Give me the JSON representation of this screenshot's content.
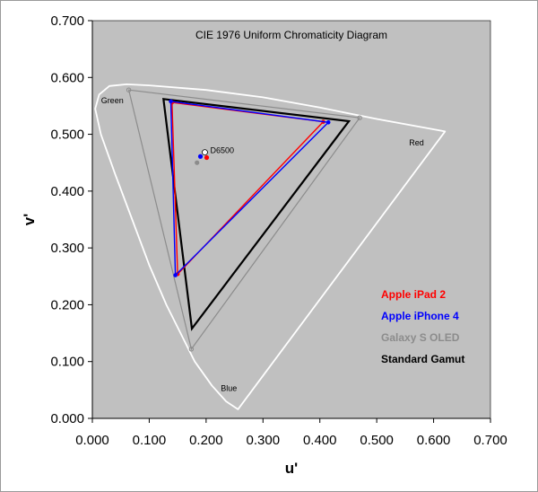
{
  "chart_data": {
    "type": "scatter",
    "title": "CIE 1976 Uniform Chromaticity Diagram",
    "xlabel": "u'",
    "ylabel": "v'",
    "xlim": [
      0,
      0.7
    ],
    "ylim": [
      0,
      0.7
    ],
    "x_ticks": [
      "0.000",
      "0.100",
      "0.200",
      "0.300",
      "0.400",
      "0.500",
      "0.600",
      "0.700"
    ],
    "y_ticks": [
      "0.000",
      "0.100",
      "0.200",
      "0.300",
      "0.400",
      "0.500",
      "0.600",
      "0.700"
    ],
    "plot_background": "#c0c0c0",
    "grid": false,
    "legend_position": "bottom-right",
    "spectral_locus": [
      [
        0.256,
        0.016
      ],
      [
        0.235,
        0.03
      ],
      [
        0.21,
        0.058
      ],
      [
        0.18,
        0.1
      ],
      [
        0.16,
        0.14
      ],
      [
        0.13,
        0.2
      ],
      [
        0.1,
        0.27
      ],
      [
        0.07,
        0.35
      ],
      [
        0.04,
        0.43
      ],
      [
        0.015,
        0.5
      ],
      [
        0.005,
        0.545
      ],
      [
        0.012,
        0.57
      ],
      [
        0.03,
        0.585
      ],
      [
        0.06,
        0.588
      ],
      [
        0.1,
        0.586
      ],
      [
        0.2,
        0.578
      ],
      [
        0.3,
        0.565
      ],
      [
        0.4,
        0.547
      ],
      [
        0.5,
        0.527
      ],
      [
        0.62,
        0.505
      ]
    ],
    "region_labels": [
      {
        "text": "Green",
        "x": 0.035,
        "y": 0.555
      },
      {
        "text": "Red",
        "x": 0.57,
        "y": 0.48
      },
      {
        "text": "Blue",
        "x": 0.24,
        "y": 0.048
      }
    ],
    "white_point": {
      "label": "D6500",
      "x": 0.1978,
      "y": 0.4683
    },
    "series": [
      {
        "name": "Galaxy S OLED",
        "color": "#8c8c8c",
        "vertices": [
          [
            0.064,
            0.578
          ],
          [
            0.47,
            0.529
          ],
          [
            0.174,
            0.122
          ]
        ],
        "white": [
          0.184,
          0.45
        ]
      },
      {
        "name": "Standard Gamut",
        "color": "#000000",
        "vertices": [
          [
            0.125,
            0.562
          ],
          [
            0.451,
            0.523
          ],
          [
            0.175,
            0.158
          ]
        ],
        "white": null
      },
      {
        "name": "Apple iPad 2",
        "color": "#ff0000",
        "vertices": [
          [
            0.14,
            0.556
          ],
          [
            0.406,
            0.522
          ],
          [
            0.15,
            0.254
          ]
        ],
        "white": [
          0.201,
          0.459
        ]
      },
      {
        "name": "Apple iPhone 4",
        "color": "#0000ff",
        "vertices": [
          [
            0.138,
            0.558
          ],
          [
            0.415,
            0.521
          ],
          [
            0.146,
            0.252
          ]
        ],
        "white": [
          0.19,
          0.461
        ]
      }
    ],
    "legend_order": [
      "Apple iPad 2",
      "Apple iPhone 4",
      "Galaxy S OLED",
      "Standard Gamut"
    ]
  }
}
